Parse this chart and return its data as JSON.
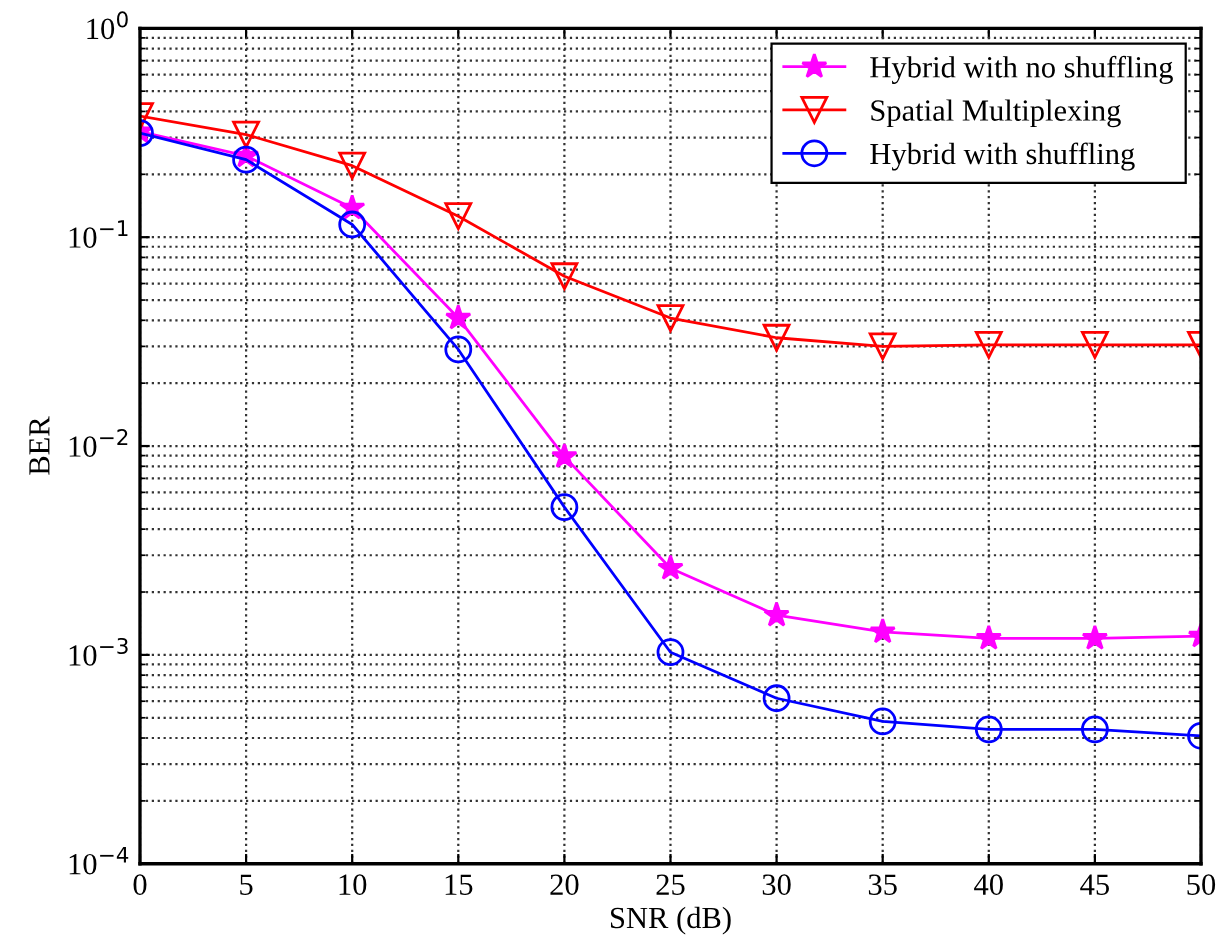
{
  "chart_data": {
    "type": "line",
    "xlabel": "SNR (dB)",
    "ylabel": "BER",
    "log": "y",
    "x": [
      0,
      5,
      10,
      15,
      20,
      25,
      30,
      35,
      40,
      45,
      50
    ],
    "xlim": [
      0,
      50
    ],
    "xticks": [
      0,
      5,
      10,
      15,
      20,
      25,
      30,
      35,
      40,
      45,
      50
    ],
    "ylim": [
      0.0001,
      1
    ],
    "yticks": [
      {
        "value": 0.0001,
        "label": "10$^{−4}$"
      },
      {
        "value": 0.001,
        "label": "10$^{−3}$"
      },
      {
        "value": 0.01,
        "label": "10$^{−2}$"
      },
      {
        "value": 0.1,
        "label": "10$^{−1}$"
      },
      {
        "value": 1,
        "label": "10$^{0}$"
      }
    ],
    "grid": true,
    "legend": "top right",
    "line_style": "solid",
    "series": [
      {
        "name": "Hybrid with no shuffling",
        "color": "#ff00ff",
        "marker": "star",
        "values": [
          0.32,
          0.245,
          0.138,
          0.041,
          0.0089,
          0.0026,
          0.00155,
          0.00129,
          0.0012,
          0.0012,
          0.00123
        ]
      },
      {
        "name": "Spatial Multiplexing",
        "color": "#ff0000",
        "marker": "triangle",
        "values": [
          0.38,
          0.31,
          0.22,
          0.126,
          0.065,
          0.041,
          0.033,
          0.03,
          0.0305,
          0.0305,
          0.0305
        ]
      },
      {
        "name": "Hybrid with shuffling",
        "color": "#0000ff",
        "marker": "circle",
        "values": [
          0.315,
          0.235,
          0.115,
          0.029,
          0.0051,
          0.00103,
          0.00062,
          0.00048,
          0.00044,
          0.00044,
          0.00041
        ]
      }
    ]
  }
}
